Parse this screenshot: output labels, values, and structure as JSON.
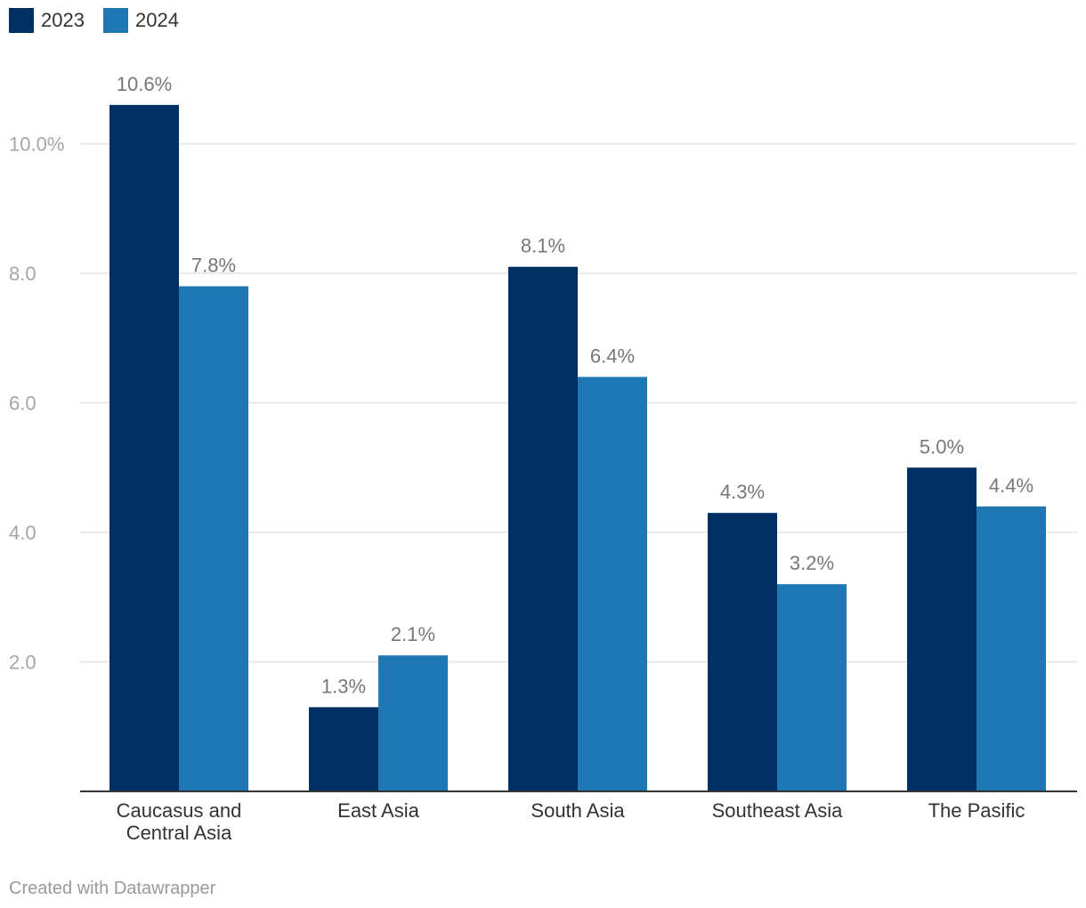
{
  "chart_data": {
    "type": "bar",
    "title": "",
    "xlabel": "",
    "ylabel": "",
    "ylim": [
      0,
      12
    ],
    "grid": true,
    "legend": "top-left",
    "categories": [
      [
        "Caucasus and",
        "Central Asia"
      ],
      [
        "East Asia"
      ],
      [
        "South Asia"
      ],
      [
        "Southeast Asia"
      ],
      [
        "The Pasific"
      ]
    ],
    "series": [
      {
        "name": "2023",
        "color": "#003063",
        "values": [
          10.6,
          1.3,
          8.1,
          4.3,
          5.0
        ],
        "labels": [
          "10.6%",
          "1.3%",
          "8.1%",
          "4.3%",
          "5.0%"
        ]
      },
      {
        "name": "2024",
        "color": "#1f77b4",
        "values": [
          7.8,
          2.1,
          6.4,
          3.2,
          4.4
        ],
        "labels": [
          "7.8%",
          "2.1%",
          "6.4%",
          "3.2%",
          "4.4%"
        ]
      }
    ],
    "y_ticks": [
      {
        "value": 2,
        "label": "2.0"
      },
      {
        "value": 4,
        "label": "4.0"
      },
      {
        "value": 6,
        "label": "6.0"
      },
      {
        "value": 8,
        "label": "8.0"
      },
      {
        "value": 10,
        "label": "10.0%"
      }
    ]
  },
  "footer": {
    "credit": "Created with Datawrapper"
  }
}
